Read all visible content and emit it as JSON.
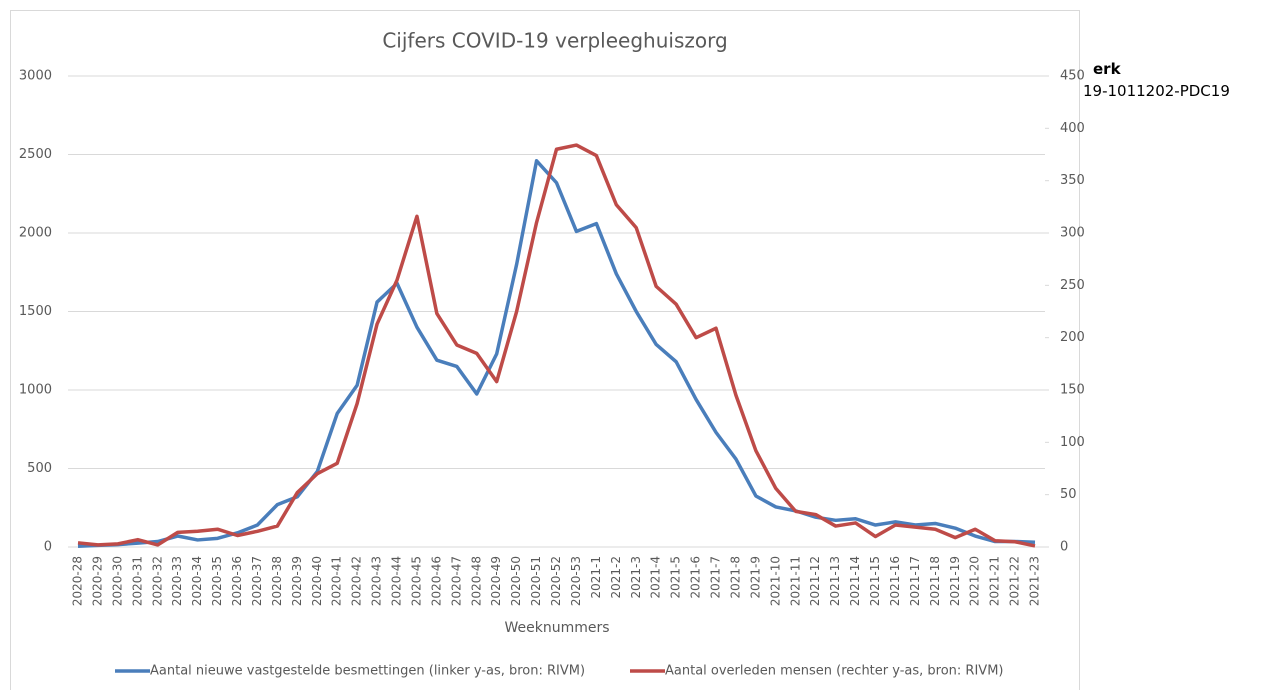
{
  "side_text": {
    "heading": "erk",
    "code": "19-1011202-PDC19"
  },
  "chart_data": {
    "type": "line",
    "title": "Cijfers COVID-19 verpleeghuiszorg",
    "xlabel": "Weeknummers",
    "categories": [
      "2020-28",
      "2020-29",
      "2020-30",
      "2020-31",
      "2020-32",
      "2020-33",
      "2020-34",
      "2020-35",
      "2020-36",
      "2020-37",
      "2020-38",
      "2020-39",
      "2020-40",
      "2020-41",
      "2020-42",
      "2020-43",
      "2020-44",
      "2020-45",
      "2020-46",
      "2020-47",
      "2020-48",
      "2020-49",
      "2020-50",
      "2020-51",
      "2020-52",
      "2020-53",
      "2021-1",
      "2021-2",
      "2021-3",
      "2021-4",
      "2021-5",
      "2021-6",
      "2021-7",
      "2021-8",
      "2021-9",
      "2021-10",
      "2021-11",
      "2021-12",
      "2021-13",
      "2021-14",
      "2021-15",
      "2021-16",
      "2021-17",
      "2021-18",
      "2021-19",
      "2021-20",
      "2021-21",
      "2021-22",
      "2021-23"
    ],
    "series": [
      {
        "name": "Aantal nieuwe vastgestelde besmettingen  (linker y-as, bron: RIVM)",
        "color": "#4a7ebb",
        "values": [
          5,
          10,
          15,
          25,
          35,
          70,
          45,
          55,
          90,
          140,
          270,
          320,
          480,
          850,
          1030,
          1560,
          1680,
          1400,
          1190,
          1150,
          975,
          1230,
          1800,
          2460,
          2320,
          2010,
          2060,
          1740,
          1500,
          1290,
          1180,
          940,
          730,
          560,
          325,
          255,
          230,
          190,
          170,
          180,
          140,
          160,
          140,
          150,
          120,
          70,
          35,
          35,
          30
        ]
      },
      {
        "name": "Aantal overleden mensen  (rechter y-as, bron: RIVM)",
        "color": "#be4b48",
        "axis": "y2",
        "values": [
          4,
          2,
          3,
          7,
          2,
          14,
          15,
          17,
          11,
          15,
          20,
          52,
          70,
          80,
          137,
          213,
          255,
          316,
          223,
          193,
          185,
          158,
          225,
          310,
          380,
          384,
          374,
          327,
          305,
          249,
          232,
          200,
          209,
          145,
          92,
          56,
          34,
          31,
          20,
          23,
          10,
          21,
          19,
          17,
          9,
          17,
          6,
          5,
          1
        ]
      }
    ],
    "ylim": [
      0,
      3000
    ],
    "yticks": [
      0,
      500,
      1000,
      1500,
      2000,
      2500,
      3000
    ],
    "y2lim": [
      0,
      450
    ],
    "y2ticks": [
      0,
      50,
      100,
      150,
      200,
      250,
      300,
      350,
      400,
      450
    ],
    "grid": true,
    "legend": "bottom"
  }
}
